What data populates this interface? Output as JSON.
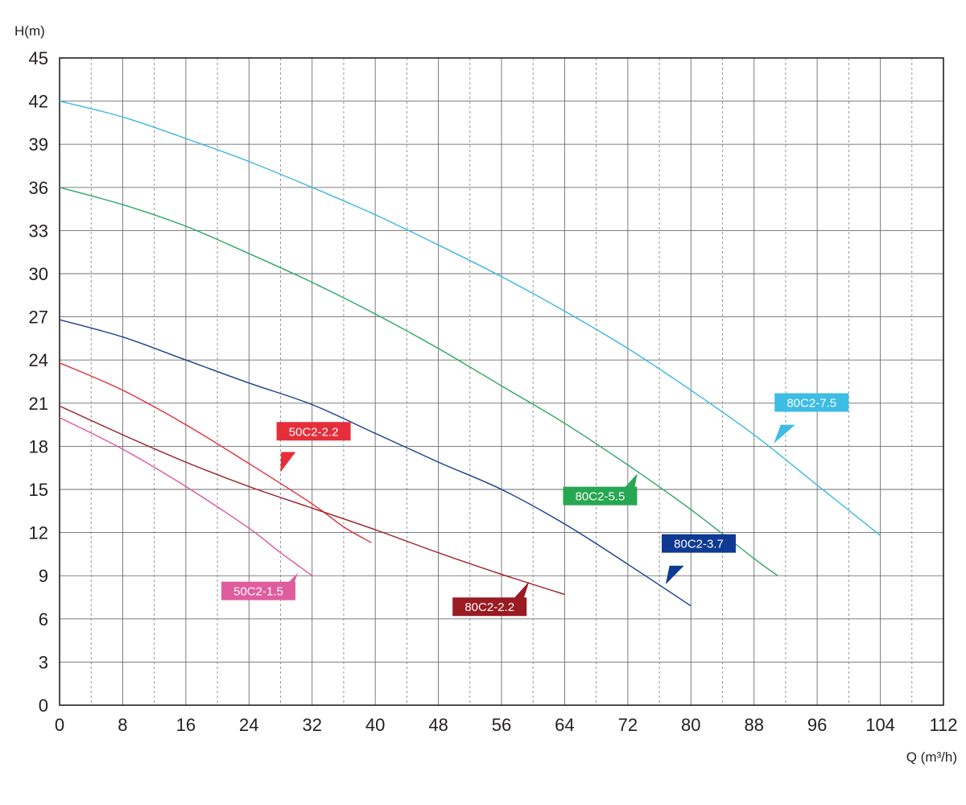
{
  "chart_data": {
    "type": "line",
    "title": "",
    "ylabel": "H(m)",
    "xlabel": "Q (m³/h)",
    "xlim": [
      0,
      112
    ],
    "ylim": [
      0,
      45
    ],
    "x_ticks": [
      0,
      8,
      16,
      24,
      32,
      40,
      48,
      56,
      64,
      72,
      80,
      88,
      96,
      104,
      112
    ],
    "y_ticks": [
      0,
      3,
      6,
      9,
      12,
      15,
      18,
      21,
      24,
      27,
      30,
      33,
      36,
      39,
      42,
      45
    ],
    "grid": true,
    "series": [
      {
        "name": "50C2-1.5",
        "color": "#e0579a",
        "x": [
          0,
          8,
          16,
          24,
          28,
          32
        ],
        "y": [
          20.0,
          17.8,
          15.2,
          12.3,
          10.6,
          9.0
        ]
      },
      {
        "name": "50C2-2.2",
        "color": "#e62e3a",
        "x": [
          0,
          8,
          16,
          24,
          32,
          36,
          39.5
        ],
        "y": [
          23.8,
          21.9,
          19.5,
          16.8,
          14.0,
          12.4,
          11.3
        ]
      },
      {
        "name": "80C2-2.2",
        "color": "#9a1b22",
        "x": [
          0,
          8,
          16,
          24,
          32,
          40,
          48,
          56,
          64
        ],
        "y": [
          20.8,
          18.8,
          16.9,
          15.2,
          13.7,
          12.2,
          10.6,
          9.1,
          7.7
        ]
      },
      {
        "name": "80C2-3.7",
        "color": "#1a3e8c",
        "x": [
          0,
          8,
          16,
          24,
          32,
          40,
          48,
          56,
          64,
          72,
          80
        ],
        "y": [
          26.8,
          25.6,
          24.0,
          22.4,
          20.9,
          18.9,
          16.9,
          15.0,
          12.6,
          9.8,
          6.9
        ]
      },
      {
        "name": "80C2-5.5",
        "color": "#2ca860",
        "x": [
          0,
          8,
          16,
          24,
          32,
          40,
          48,
          56,
          64,
          72,
          80,
          88,
          91
        ],
        "y": [
          36.0,
          34.8,
          33.3,
          31.4,
          29.4,
          27.2,
          24.8,
          22.2,
          19.6,
          16.7,
          13.6,
          10.2,
          9.0
        ]
      },
      {
        "name": "80C2-7.5",
        "color": "#3db8e0",
        "x": [
          0,
          8,
          16,
          24,
          32,
          40,
          48,
          56,
          64,
          72,
          80,
          88,
          96,
          104
        ],
        "y": [
          42.0,
          40.9,
          39.4,
          37.8,
          36.0,
          34.1,
          32.0,
          29.8,
          27.4,
          24.8,
          21.9,
          18.8,
          15.3,
          11.8
        ]
      }
    ],
    "labels": [
      {
        "text": "50C2-1.5",
        "color": "#df5d9d",
        "anchor": [
          30,
          10.0
        ],
        "box": [
          20.5,
          7.3
        ],
        "ptr_base": [
          28.2,
          7.6
        ],
        "ptr_tip": [
          30.2,
          9.2
        ]
      },
      {
        "text": "50C2-2.2",
        "color": "#e62e3a",
        "anchor": [
          28,
          16.4
        ],
        "box": [
          27.5,
          18.4
        ],
        "ptr_base": [
          29.0,
          17.6
        ],
        "ptr_tip": [
          28.0,
          16.2
        ]
      },
      {
        "text": "80C2-2.2",
        "color": "#9a1b22",
        "anchor": [
          59,
          8.6
        ],
        "box": [
          49.8,
          6.2
        ],
        "ptr_base": [
          57.6,
          6.9
        ],
        "ptr_tip": [
          59.5,
          8.6
        ]
      },
      {
        "text": "80C2-3.7",
        "color": "#0f3a93",
        "anchor": [
          77,
          8.5
        ],
        "box": [
          76.3,
          10.6
        ],
        "ptr_base": [
          78.2,
          9.7
        ],
        "ptr_tip": [
          76.8,
          8.4
        ]
      },
      {
        "text": "80C2-5.5",
        "color": "#27a653",
        "anchor": [
          73,
          16.2
        ],
        "box": [
          63.8,
          13.9
        ],
        "ptr_base": [
          71.8,
          14.7
        ],
        "ptr_tip": [
          73.2,
          16.1
        ]
      },
      {
        "text": "80C2-7.5",
        "color": "#3dbce6",
        "anchor": [
          90,
          18.2
        ],
        "box": [
          90.6,
          20.4
        ],
        "ptr_base": [
          92.3,
          19.5
        ],
        "ptr_tip": [
          90.5,
          18.2
        ]
      }
    ]
  }
}
